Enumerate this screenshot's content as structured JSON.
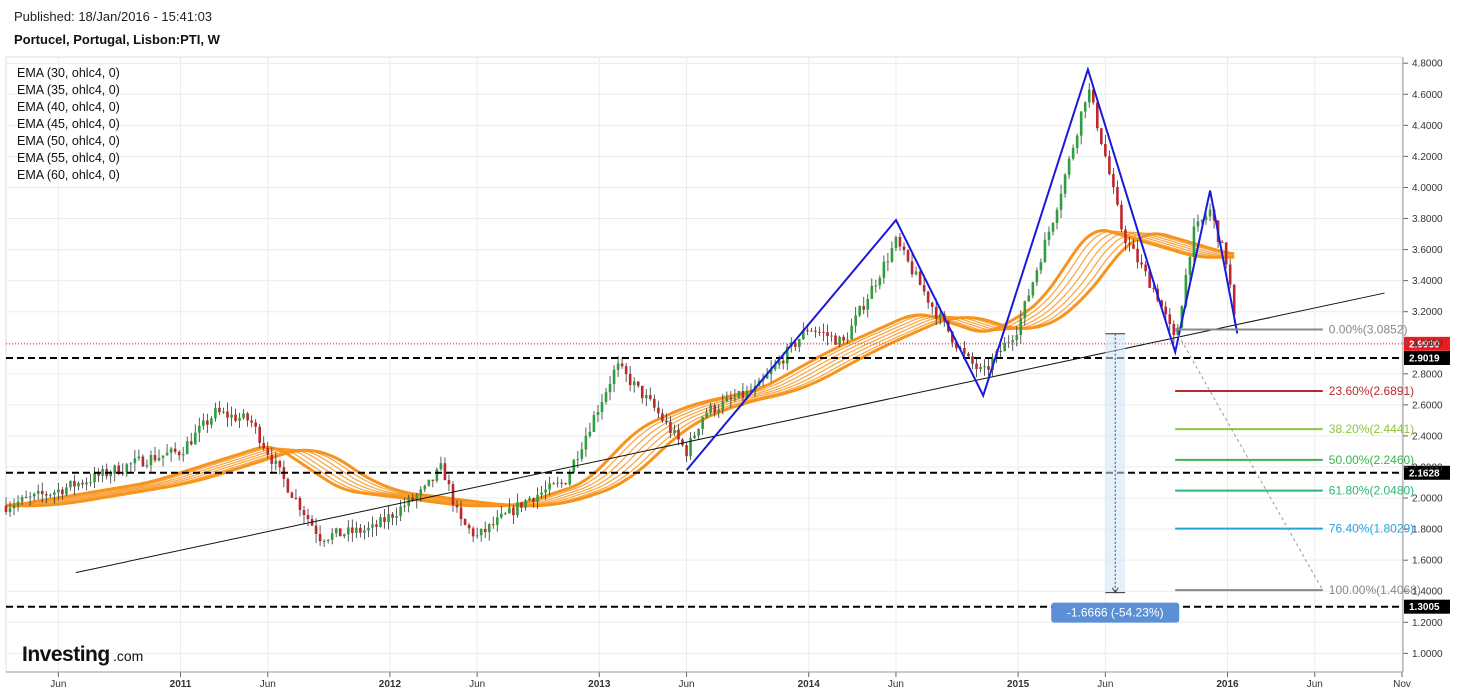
{
  "header": {
    "published": "Published: 18/Jan/2016 - 15:41:03",
    "symbol": "Portucel, Portugal, Lisbon:PTI, W"
  },
  "logo": {
    "brand": "Investing",
    "suffix": ".com"
  },
  "colors": {
    "up": "#2e9e3e",
    "down": "#c0272d",
    "ema": "#f7941d",
    "trend_blue": "#1a1adb",
    "price_marker": "#e31e24",
    "measure": "#5b8fd6"
  },
  "chart_data": {
    "type": "candlestick",
    "title": "Portucel, Portugal, Lisbon:PTI, W",
    "ylim": [
      0.88,
      4.84
    ],
    "y_ticks": [
      "4.8000",
      "4.6000",
      "4.4000",
      "4.2000",
      "4.0000",
      "3.8000",
      "3.6000",
      "3.4000",
      "3.2000",
      "3.0000",
      "2.8000",
      "2.6000",
      "2.4000",
      "2.2000",
      "2.0000",
      "1.8000",
      "1.6000",
      "1.4000",
      "1.2000",
      "1.0000"
    ],
    "x_ticks": [
      "Jun",
      "2011",
      "Jun",
      "2012",
      "Jun",
      "2013",
      "Jun",
      "2014",
      "Jun",
      "2015",
      "Jun",
      "2016",
      "Jun",
      "Nov"
    ],
    "x_tick_dates": [
      "2010-06",
      "2011-01",
      "2011-06",
      "2012-01",
      "2012-06",
      "2013-01",
      "2013-06",
      "2014-01",
      "2014-06",
      "2015-01",
      "2015-06",
      "2016-01",
      "2016-06",
      "2016-11"
    ],
    "x_range": [
      "2010-03",
      "2016-11"
    ],
    "indicators": [
      "EMA (30, ohlc4, 0)",
      "EMA (35, ohlc4, 0)",
      "EMA (40, ohlc4, 0)",
      "EMA (45, ohlc4, 0)",
      "EMA (50, ohlc4, 0)",
      "EMA (55, ohlc4, 0)",
      "EMA (60, ohlc4, 0)"
    ],
    "last_price": "2.9930",
    "price_key_points": [
      [
        "2010-03",
        1.95
      ],
      [
        "2010-06",
        2.05
      ],
      [
        "2010-11",
        2.25
      ],
      [
        "2011-01",
        2.3
      ],
      [
        "2011-03",
        2.55
      ],
      [
        "2011-05",
        2.5
      ],
      [
        "2011-07",
        2.1
      ],
      [
        "2011-09",
        1.75
      ],
      [
        "2011-12",
        1.8
      ],
      [
        "2012-03",
        2.05
      ],
      [
        "2012-04",
        2.2
      ],
      [
        "2012-05",
        1.85
      ],
      [
        "2012-06",
        1.75
      ],
      [
        "2012-09",
        2.0
      ],
      [
        "2012-11",
        2.1
      ],
      [
        "2013-01",
        2.6
      ],
      [
        "2013-02",
        2.85
      ],
      [
        "2013-04",
        2.6
      ],
      [
        "2013-06",
        2.3
      ],
      [
        "2013-07",
        2.55
      ],
      [
        "2013-10",
        2.7
      ],
      [
        "2014-01",
        3.1
      ],
      [
        "2014-03",
        3.0
      ],
      [
        "2014-06",
        3.65
      ],
      [
        "2014-08",
        3.25
      ],
      [
        "2014-10",
        2.9
      ],
      [
        "2014-11",
        2.8
      ],
      [
        "2015-01",
        3.1
      ],
      [
        "2015-03",
        3.8
      ],
      [
        "2015-04",
        4.2
      ],
      [
        "2015-05",
        4.65
      ],
      [
        "2015-06",
        4.2
      ],
      [
        "2015-07",
        3.7
      ],
      [
        "2015-08",
        3.5
      ],
      [
        "2015-09",
        3.3
      ],
      [
        "2015-10",
        3.0
      ],
      [
        "2015-11",
        3.7
      ],
      [
        "2015-12",
        3.85
      ],
      [
        "2016-01",
        3.5
      ],
      [
        "2016-01-18",
        2.993
      ]
    ],
    "ema_key_points": [
      [
        "2010-03",
        1.95
      ],
      [
        "2010-11",
        2.1
      ],
      [
        "2011-06",
        2.35
      ],
      [
        "2011-10",
        2.05
      ],
      [
        "2012-05",
        1.95
      ],
      [
        "2012-08",
        1.95
      ],
      [
        "2012-12",
        2.1
      ],
      [
        "2013-03",
        2.45
      ],
      [
        "2013-06",
        2.6
      ],
      [
        "2013-10",
        2.7
      ],
      [
        "2014-02",
        2.95
      ],
      [
        "2014-07",
        3.2
      ],
      [
        "2014-11",
        3.05
      ],
      [
        "2015-02",
        3.25
      ],
      [
        "2015-05",
        3.75
      ],
      [
        "2015-08",
        3.65
      ],
      [
        "2015-11",
        3.55
      ],
      [
        "2016-01-18",
        3.55
      ]
    ],
    "horizontal_levels": [
      "2.9019",
      "2.1628",
      "1.3005"
    ],
    "fibonacci": [
      {
        "label": "0.00%(3.0852)",
        "value": 3.0852,
        "color": "#888888"
      },
      {
        "label": "23.60%(2.6891)",
        "value": 2.6891,
        "color": "#c0272d"
      },
      {
        "label": "38.20%(2.4441)",
        "value": 2.4441,
        "color": "#8cc63f"
      },
      {
        "label": "50.00%(2.2460)",
        "value": 2.246,
        "color": "#39b54a"
      },
      {
        "label": "61.80%(2.0480)",
        "value": 2.048,
        "color": "#2bb673"
      },
      {
        "label": "76.40%(1.8029)",
        "value": 1.8029,
        "color": "#29a3d6"
      },
      {
        "label": "100.00%(1.4068)",
        "value": 1.4068,
        "color": "#888888"
      }
    ],
    "zigzag": [
      [
        "2013-06",
        2.18
      ],
      [
        "2014-06",
        3.79
      ],
      [
        "2014-11",
        2.66
      ],
      [
        "2015-05",
        4.76
      ],
      [
        "2015-10",
        2.94
      ],
      [
        "2015-12",
        3.98
      ],
      [
        "2016-01-18",
        3.06
      ]
    ],
    "trendline": [
      [
        "2010-07",
        1.52
      ],
      [
        "2016-10",
        3.32
      ]
    ],
    "measurement_label": "-1.6666 (-54.23%)"
  }
}
